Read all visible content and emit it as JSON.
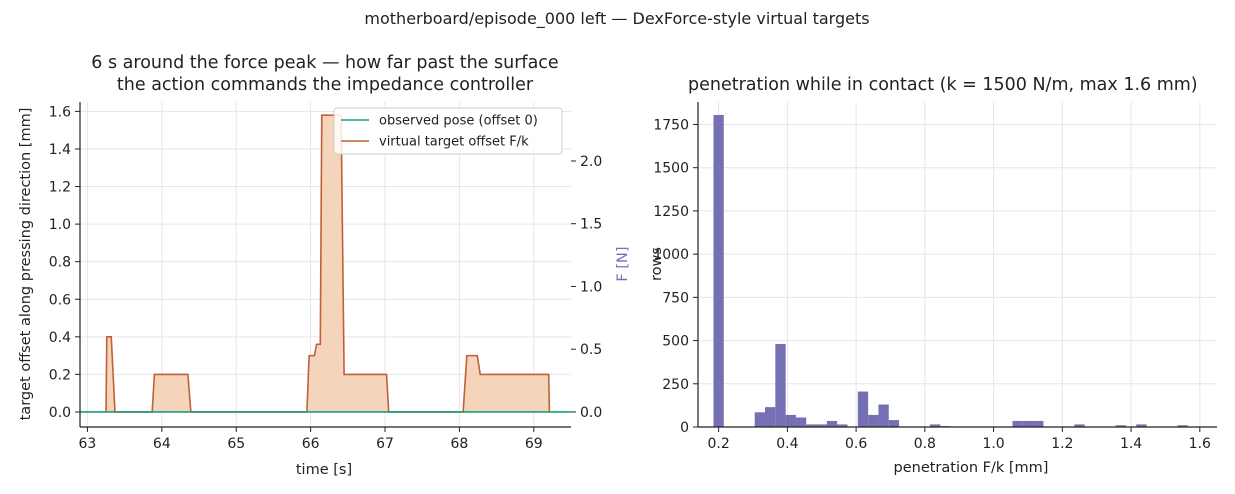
{
  "suptitle": "motherboard/episode_000 left — DexForce-style virtual targets",
  "chart_data": [
    {
      "type": "line",
      "title_line1": "6 s around the force peak — how far past the surface",
      "title_line2": "the action commands the impedance controller",
      "xlabel": "time [s]",
      "ylabel": "target offset along pressing direction [mm]",
      "y2label": "F [N]",
      "xlim": [
        62.9,
        69.5
      ],
      "ylim": [
        -0.08,
        1.65
      ],
      "y2lim": [
        -0.12,
        2.47
      ],
      "x_ticks": [
        63,
        64,
        65,
        66,
        67,
        68,
        69
      ],
      "y_ticks": [
        0.0,
        0.2,
        0.4,
        0.6,
        0.8,
        1.0,
        1.2,
        1.4,
        1.6
      ],
      "y2_ticks": [
        0.0,
        0.5,
        1.0,
        1.5,
        2.0
      ],
      "grid": true,
      "legend_position": "top-right",
      "series": [
        {
          "name": "observed pose (offset 0)",
          "color": "#1b9e77",
          "x": [
            62.9,
            69.5
          ],
          "y": [
            0,
            0
          ]
        },
        {
          "name": "virtual target offset F/k",
          "color": "#c0603a",
          "fill": "#f4d4bb",
          "x": [
            63.25,
            63.26,
            63.32,
            63.37,
            63.87,
            63.9,
            64.35,
            64.39,
            65.95,
            65.98,
            66.05,
            66.08,
            66.13,
            66.15,
            66.24,
            66.41,
            66.45,
            66.78,
            67.02,
            67.05,
            68.05,
            68.1,
            68.24,
            68.28,
            69.2,
            69.21
          ],
          "y": [
            0,
            0.4,
            0.4,
            0,
            0,
            0.2,
            0.2,
            0,
            0,
            0.3,
            0.3,
            0.36,
            0.36,
            1.58,
            1.58,
            1.58,
            0.2,
            0.2,
            0.2,
            0,
            0,
            0.3,
            0.3,
            0.2,
            0.2,
            0
          ]
        }
      ]
    },
    {
      "type": "bar",
      "title": "penetration while in contact (k = 1500 N/m, max 1.6 mm)",
      "xlabel": "penetration F/k [mm]",
      "ylabel": "rows",
      "xlim": [
        0.14,
        1.65
      ],
      "ylim": [
        0,
        1880
      ],
      "x_ticks": [
        0.2,
        0.4,
        0.6,
        0.8,
        1.0,
        1.2,
        1.4,
        1.6
      ],
      "y_ticks": [
        0,
        250,
        500,
        750,
        1000,
        1250,
        1500,
        1750
      ],
      "grid": true,
      "color": "#7570b3",
      "bin_width": 0.03,
      "bins": [
        {
          "x": 0.2,
          "value": 1805
        },
        {
          "x": 0.32,
          "value": 85
        },
        {
          "x": 0.35,
          "value": 115
        },
        {
          "x": 0.38,
          "value": 480
        },
        {
          "x": 0.41,
          "value": 70
        },
        {
          "x": 0.44,
          "value": 55
        },
        {
          "x": 0.47,
          "value": 15
        },
        {
          "x": 0.5,
          "value": 15
        },
        {
          "x": 0.53,
          "value": 35
        },
        {
          "x": 0.56,
          "value": 15
        },
        {
          "x": 0.62,
          "value": 205
        },
        {
          "x": 0.65,
          "value": 70
        },
        {
          "x": 0.68,
          "value": 130
        },
        {
          "x": 0.71,
          "value": 40
        },
        {
          "x": 0.83,
          "value": 15
        },
        {
          "x": 0.86,
          "value": 5
        },
        {
          "x": 1.07,
          "value": 35
        },
        {
          "x": 1.1,
          "value": 35
        },
        {
          "x": 1.13,
          "value": 35
        },
        {
          "x": 1.25,
          "value": 15
        },
        {
          "x": 1.37,
          "value": 10
        },
        {
          "x": 1.43,
          "value": 15
        },
        {
          "x": 1.55,
          "value": 10
        }
      ]
    }
  ]
}
